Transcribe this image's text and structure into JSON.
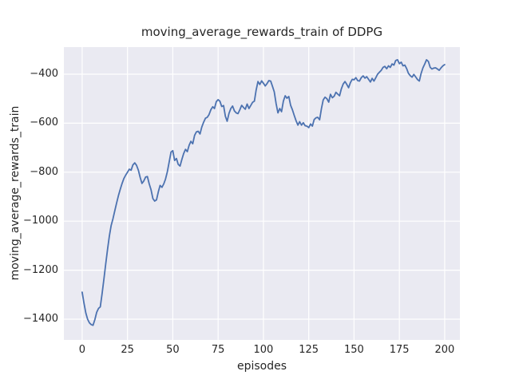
{
  "chart_data": {
    "type": "line",
    "title": "moving_average_rewards_train of DDPG",
    "xlabel": "episodes",
    "ylabel": "moving_average_rewards_train",
    "x_ticks": [
      0,
      25,
      50,
      75,
      100,
      125,
      150,
      175,
      200
    ],
    "y_ticks": [
      -400,
      -600,
      -800,
      -1000,
      -1200,
      -1400
    ],
    "xlim": [
      -10.1,
      208.4
    ],
    "ylim": [
      -1484.7,
      -289.3
    ],
    "grid": true,
    "legend": "none",
    "colors": {
      "line": "#4c72b0",
      "plot_background": "#eaeaf2",
      "grid": "#ffffff",
      "text": "#262626",
      "figure_background": "#ffffff"
    },
    "series": [
      {
        "name": "moving_average_rewards_train",
        "x_start": 0,
        "x_step": 1,
        "values": [
          -1290,
          -1335,
          -1375,
          -1400,
          -1415,
          -1422,
          -1425,
          -1402,
          -1372,
          -1356,
          -1350,
          -1295,
          -1235,
          -1175,
          -1115,
          -1060,
          -1018,
          -990,
          -957,
          -925,
          -896,
          -870,
          -846,
          -826,
          -812,
          -800,
          -788,
          -792,
          -770,
          -762,
          -772,
          -792,
          -822,
          -846,
          -836,
          -820,
          -818,
          -848,
          -872,
          -908,
          -918,
          -913,
          -880,
          -854,
          -862,
          -848,
          -828,
          -798,
          -758,
          -718,
          -712,
          -752,
          -744,
          -768,
          -775,
          -748,
          -724,
          -707,
          -716,
          -690,
          -674,
          -684,
          -650,
          -636,
          -633,
          -644,
          -616,
          -596,
          -580,
          -576,
          -565,
          -545,
          -533,
          -540,
          -512,
          -504,
          -510,
          -532,
          -528,
          -572,
          -592,
          -560,
          -540,
          -530,
          -550,
          -558,
          -561,
          -545,
          -527,
          -536,
          -543,
          -522,
          -540,
          -528,
          -515,
          -510,
          -465,
          -430,
          -442,
          -427,
          -437,
          -448,
          -438,
          -426,
          -428,
          -450,
          -472,
          -520,
          -558,
          -540,
          -553,
          -510,
          -488,
          -498,
          -491,
          -527,
          -545,
          -568,
          -590,
          -608,
          -594,
          -608,
          -598,
          -610,
          -612,
          -618,
          -603,
          -612,
          -585,
          -578,
          -576,
          -586,
          -540,
          -505,
          -494,
          -500,
          -514,
          -482,
          -496,
          -490,
          -474,
          -481,
          -488,
          -460,
          -440,
          -430,
          -442,
          -455,
          -434,
          -421,
          -423,
          -414,
          -426,
          -428,
          -414,
          -407,
          -416,
          -410,
          -421,
          -432,
          -417,
          -428,
          -414,
          -400,
          -392,
          -384,
          -372,
          -368,
          -378,
          -366,
          -372,
          -358,
          -363,
          -344,
          -341,
          -357,
          -351,
          -366,
          -363,
          -377,
          -396,
          -406,
          -412,
          -401,
          -411,
          -422,
          -428,
          -397,
          -374,
          -358,
          -341,
          -348,
          -372,
          -379,
          -375,
          -374,
          -379,
          -384,
          -374,
          -366,
          -361
        ]
      }
    ]
  }
}
